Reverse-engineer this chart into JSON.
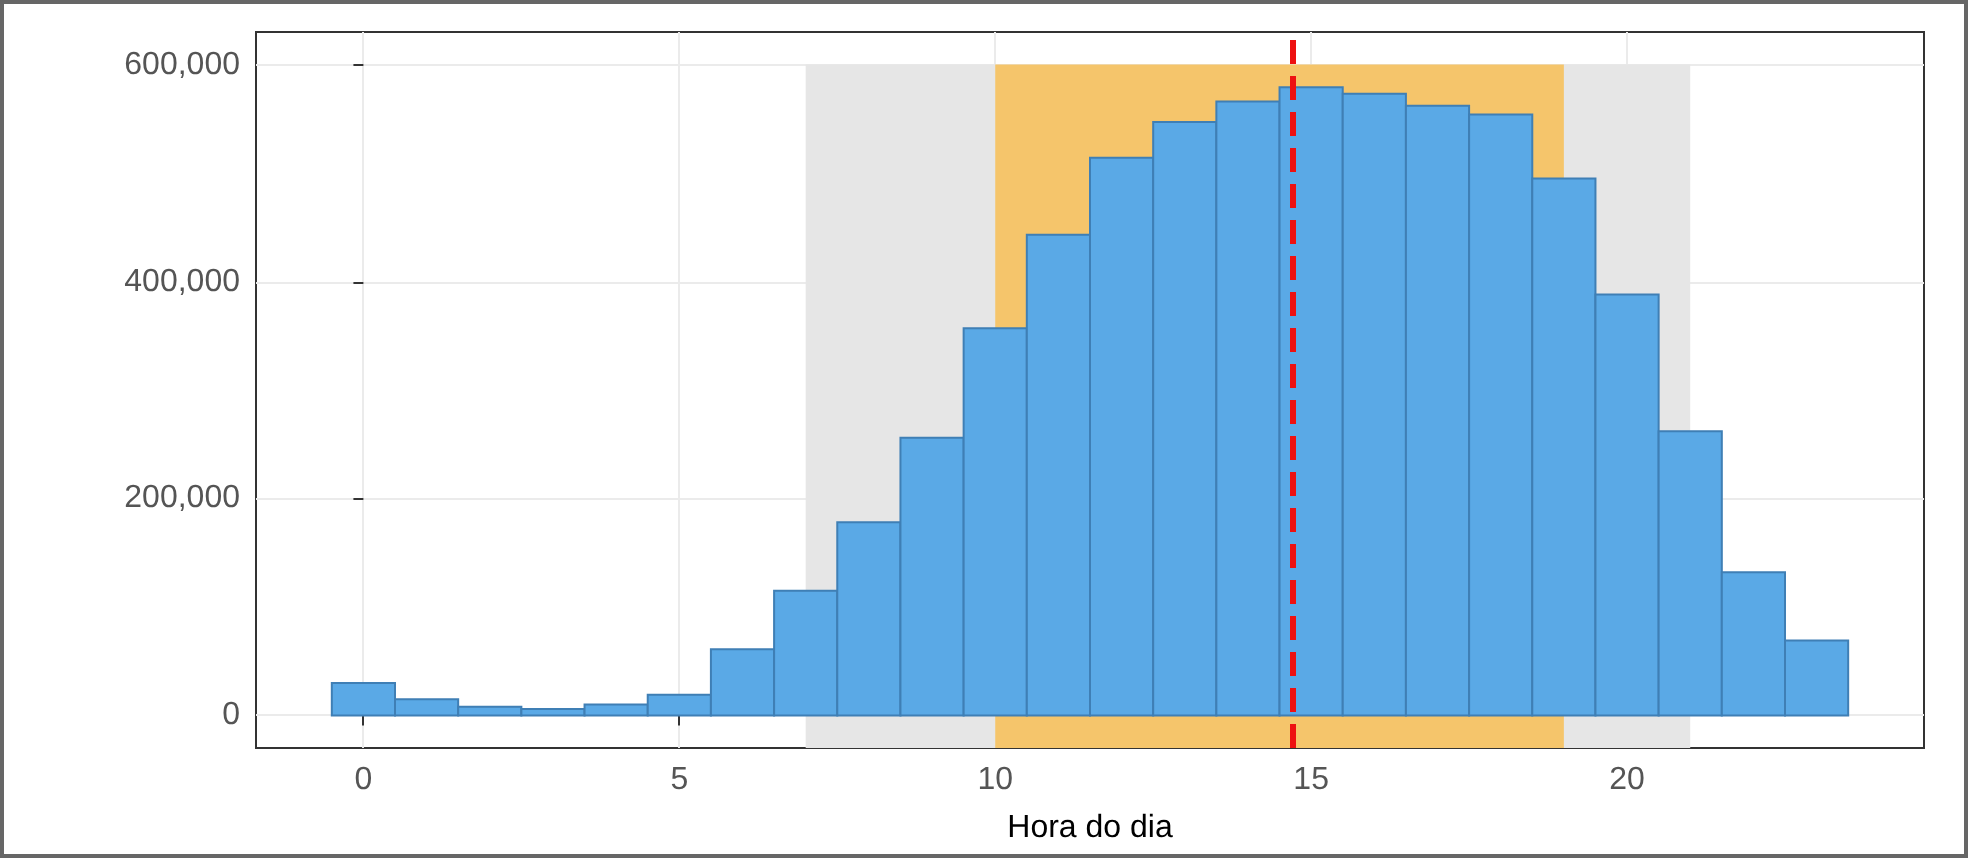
{
  "chart_data": {
    "type": "histogram",
    "xlabel": "Hora do dia",
    "bins": [
      -0.5,
      0.5,
      1.5,
      2.5,
      3.5,
      4.5,
      5.5,
      6.5,
      7.5,
      8.5,
      9.5,
      10.5,
      11.5,
      12.5,
      13.5,
      14.5,
      15.5,
      16.5,
      17.5,
      18.5,
      19.5,
      20.5,
      21.5,
      22.5,
      23.5
    ],
    "values": [
      30000,
      15000,
      8000,
      6000,
      10000,
      19000,
      61000,
      115000,
      178000,
      256000,
      357000,
      443000,
      514000,
      547000,
      566000,
      579000,
      573000,
      562000,
      554000,
      495000,
      388000,
      262000,
      132000,
      69000
    ],
    "color": "#5aa9e6",
    "xlim": [
      -1.7,
      24.7
    ],
    "xticks": [
      0,
      5,
      10,
      15,
      20
    ],
    "ylim": [
      -30000,
      630000
    ],
    "yticks": [
      {
        "value": 0,
        "label": "0"
      },
      {
        "value": 200000,
        "label": "200,000"
      },
      {
        "value": 400000,
        "label": "400,000"
      },
      {
        "value": 600000,
        "label": "600,000"
      }
    ],
    "bands": [
      {
        "axis": "x",
        "from": 7,
        "to": 21,
        "color": "#e6e6e6"
      },
      {
        "axis": "x",
        "from": 10,
        "to": 19,
        "color": "#f5c56b"
      }
    ],
    "ref_lines": [
      {
        "axis": "x",
        "value": 14.7,
        "color": "#ee1111",
        "line_style": "dashed"
      }
    ],
    "grid": true
  }
}
